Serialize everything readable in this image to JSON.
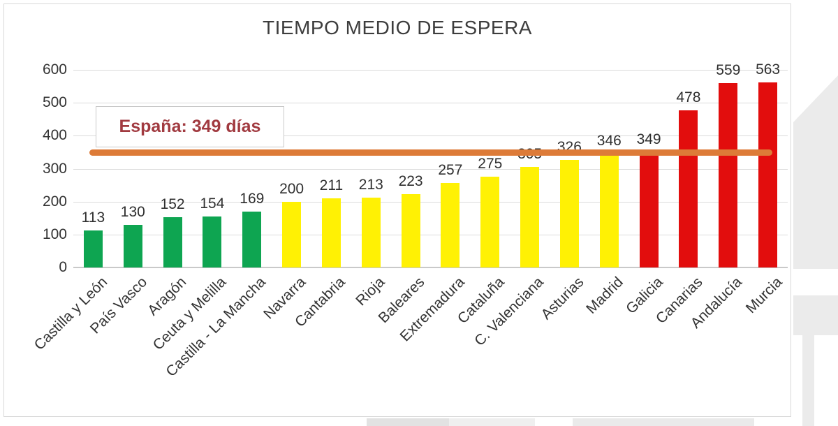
{
  "chart_data": {
    "type": "bar",
    "title": "TIEMPO MEDIO DE ESPERA",
    "categories": [
      "Castilla y León",
      "País Vasco",
      "Aragón",
      "Ceuta y Melilla",
      "Castilla - La Mancha",
      "Navarra",
      "Cantabria",
      "Rioja",
      "Baleares",
      "Extremadura",
      "Cataluña",
      "C. Valenciana",
      "Asturias",
      "Madrid",
      "Galicia",
      "Canarias",
      "Andalucía",
      "Murcia"
    ],
    "values": [
      113,
      130,
      152,
      154,
      169,
      200,
      211,
      213,
      223,
      257,
      275,
      305,
      326,
      346,
      349,
      478,
      559,
      563
    ],
    "bar_color_keys": [
      "green",
      "green",
      "green",
      "green",
      "green",
      "yellow",
      "yellow",
      "yellow",
      "yellow",
      "yellow",
      "yellow",
      "yellow",
      "yellow",
      "yellow",
      "red",
      "red",
      "red",
      "red"
    ],
    "palette": {
      "green": "#0ea551",
      "yellow": "#fff104",
      "red": "#e20d0d"
    },
    "ylim": [
      0,
      600
    ],
    "yticks": [
      0,
      100,
      200,
      300,
      400,
      500,
      600
    ],
    "grid": true,
    "legend": "none",
    "xlabel": "",
    "ylabel": "",
    "reference_line": {
      "value": 349,
      "label": "España: 349 días",
      "color": "#dd7b38",
      "label_color": "#a13a40"
    }
  }
}
